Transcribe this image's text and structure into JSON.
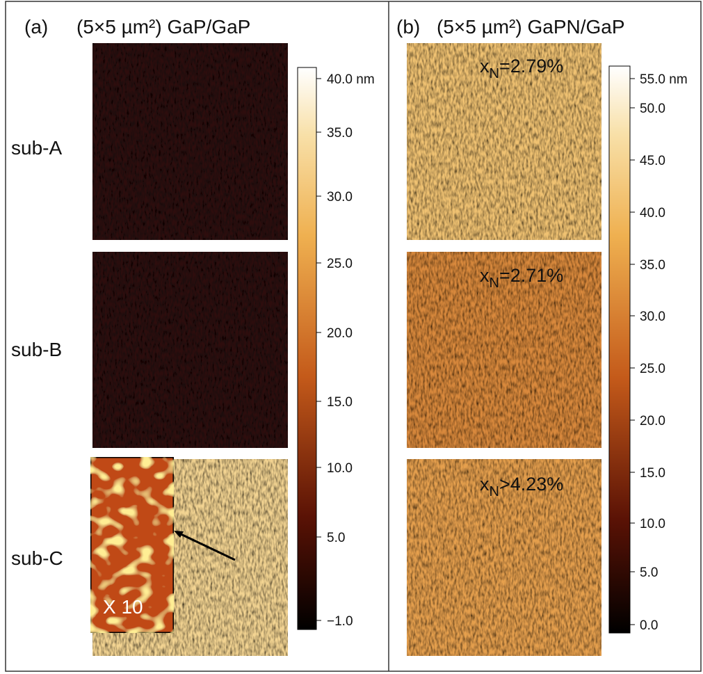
{
  "panel_a": {
    "label": "(a)",
    "title": "(5×5 µm²) GaP/GaP",
    "rows": [
      "sub-A",
      "sub-B",
      "sub-C"
    ],
    "inset_label": "X 10",
    "colorbar": [
      "40.0 nm",
      "35.0",
      "30.0",
      "25.0",
      "20.0",
      "15.0",
      "10.0",
      "5.0",
      "−1.0"
    ]
  },
  "panel_b": {
    "label": "(b)",
    "title": "(5×5 µm²) GaPN/GaP",
    "annotations": [
      {
        "prefix": "x",
        "sub": "N",
        "suffix": "=2.79%"
      },
      {
        "prefix": "x",
        "sub": "N",
        "suffix": "=2.71%"
      },
      {
        "prefix": "x",
        "sub": "N",
        "suffix": ">4.23%"
      }
    ],
    "colorbar": [
      "55.0 nm",
      "50.0",
      "45.0",
      "40.0",
      "35.0",
      "30.0",
      "25.0",
      "20.0",
      "15.0",
      "10.0",
      "5.0",
      "0.0"
    ]
  }
}
